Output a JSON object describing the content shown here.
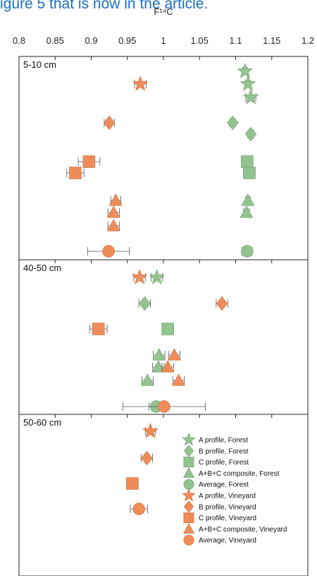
{
  "caption": {
    "text": "igure 5 that is now in the article.",
    "color": "#1a6fc4"
  },
  "chart_data": {
    "type": "scatter",
    "xlabel": "F¹⁴C",
    "xlim": [
      0.8,
      1.2
    ],
    "x_ticks": [
      "0.8",
      "0.85",
      "0.9",
      "0.95",
      "1",
      "1.05",
      "1.1",
      "1.15",
      "1.2"
    ],
    "x_tick_values": [
      0.8,
      0.85,
      0.9,
      0.95,
      1.0,
      1.05,
      1.1,
      1.15,
      1.2
    ],
    "colors": {
      "Forest": "#93c48f",
      "Vineyard": "#ef8c5a",
      "Forest_edge": "#6a9a66",
      "Vineyard_edge": "#c86a3c"
    },
    "panels": [
      {
        "label": "5-10 cm",
        "points": [
          {
            "series": "A profile, Forest",
            "shape": "star",
            "group": "Forest",
            "x": 1.113,
            "xerr": 0.003
          },
          {
            "series": "A profile, Vineyard",
            "shape": "star",
            "group": "Vineyard",
            "x": 0.968,
            "xerr": 0.008
          },
          {
            "series": "A profile, Forest",
            "shape": "star",
            "group": "Forest",
            "x": 1.117,
            "xerr": 0.003
          },
          {
            "series": "A profile, Forest",
            "shape": "star",
            "group": "Forest",
            "x": 1.121,
            "xerr": 0.007
          },
          {
            "series": "B profile, Vineyard",
            "shape": "diamond",
            "group": "Vineyard",
            "x": 0.925,
            "xerr": 0.007
          },
          {
            "series": "B profile, Forest",
            "shape": "diamond",
            "group": "Forest",
            "x": 1.096,
            "xerr": 0.004
          },
          {
            "series": "B profile, Forest",
            "shape": "diamond",
            "group": "Forest",
            "x": 1.121,
            "xerr": 0.004
          },
          {
            "series": "C profile, Vineyard",
            "shape": "square",
            "group": "Vineyard",
            "x": 0.897,
            "xerr": 0.015
          },
          {
            "series": "C profile, Forest",
            "shape": "square",
            "group": "Forest",
            "x": 1.116,
            "xerr": 0.003
          },
          {
            "series": "C profile, Vineyard",
            "shape": "square",
            "group": "Vineyard",
            "x": 0.878,
            "xerr": 0.012
          },
          {
            "series": "C profile, Forest",
            "shape": "square",
            "group": "Forest",
            "x": 1.119,
            "xerr": 0.008
          },
          {
            "series": "A+B+C composite, Vineyard",
            "shape": "triangle",
            "group": "Vineyard",
            "x": 0.934,
            "xerr": 0.007
          },
          {
            "series": "A+B+C composite, Forest",
            "shape": "triangle",
            "group": "Forest",
            "x": 1.117,
            "xerr": 0.003
          },
          {
            "series": "A+B+C composite, Vineyard",
            "shape": "triangle",
            "group": "Vineyard",
            "x": 0.931,
            "xerr": 0.008
          },
          {
            "series": "A+B+C composite, Forest",
            "shape": "triangle",
            "group": "Forest",
            "x": 1.115,
            "xerr": 0.004
          },
          {
            "series": "A+B+C composite, Vineyard",
            "shape": "triangle",
            "group": "Vineyard",
            "x": 0.931,
            "xerr": 0.008
          },
          {
            "series": "Average, Vineyard",
            "shape": "circle",
            "group": "Vineyard",
            "x": 0.924,
            "xerr": 0.029
          },
          {
            "series": "Average, Forest",
            "shape": "circle",
            "group": "Forest",
            "x": 1.116,
            "xerr": 0.007
          }
        ]
      },
      {
        "label": "40-50 cm",
        "points": [
          {
            "series": "A profile, Vineyard",
            "shape": "star",
            "group": "Vineyard",
            "x": 0.967,
            "xerr": 0.008
          },
          {
            "series": "A profile, Forest",
            "shape": "star",
            "group": "Forest",
            "x": 0.991,
            "xerr": 0.008
          },
          {
            "series": "B profile, Forest",
            "shape": "diamond",
            "group": "Forest",
            "x": 0.974,
            "xerr": 0.008
          },
          {
            "series": "B profile, Vineyard",
            "shape": "diamond",
            "group": "Vineyard",
            "x": 1.081,
            "xerr": 0.008
          },
          {
            "series": "C profile, Vineyard",
            "shape": "square",
            "group": "Vineyard",
            "x": 0.91,
            "xerr": 0.012
          },
          {
            "series": "C profile, Forest",
            "shape": "square",
            "group": "Forest",
            "x": 1.006,
            "xerr": 0.008
          },
          {
            "series": "A+B+C composite, Forest",
            "shape": "triangle",
            "group": "Forest",
            "x": 0.994,
            "xerr": 0.008
          },
          {
            "series": "A+B+C composite, Vineyard",
            "shape": "triangle",
            "group": "Vineyard",
            "x": 1.015,
            "xerr": 0.008
          },
          {
            "series": "A+B+C composite, Forest",
            "shape": "triangle",
            "group": "Forest",
            "x": 0.993,
            "xerr": 0.008
          },
          {
            "series": "A+B+C composite, Vineyard",
            "shape": "triangle",
            "group": "Vineyard",
            "x": 1.006,
            "xerr": 0.008
          },
          {
            "series": "A+B+C composite, Forest",
            "shape": "triangle",
            "group": "Forest",
            "x": 0.978,
            "xerr": 0.008
          },
          {
            "series": "A+B+C composite, Vineyard",
            "shape": "triangle",
            "group": "Vineyard",
            "x": 1.021,
            "xerr": 0.008
          },
          {
            "series": "Average, Forest",
            "shape": "circle",
            "group": "Forest",
            "x": 0.99,
            "xerr": 0.01
          },
          {
            "series": "Average, Vineyard",
            "shape": "circle",
            "group": "Vineyard",
            "x": 1.001,
            "xerr": 0.057
          }
        ]
      },
      {
        "label": "50-60 cm",
        "points": [
          {
            "series": "A profile, Vineyard",
            "shape": "star",
            "group": "Vineyard",
            "x": 0.982,
            "xerr": 0.007
          },
          {
            "series": "B profile, Vineyard",
            "shape": "diamond",
            "group": "Vineyard",
            "x": 0.977,
            "xerr": 0.008
          },
          {
            "series": "C profile, Vineyard",
            "shape": "square",
            "group": "Vineyard",
            "x": 0.957,
            "xerr": 0.008
          },
          {
            "series": "Average, Vineyard",
            "shape": "circle",
            "group": "Vineyard",
            "x": 0.966,
            "xerr": 0.012
          }
        ]
      }
    ],
    "legend": [
      {
        "label": "A profile, Forest",
        "shape": "star",
        "group": "Forest"
      },
      {
        "label": "B profile, Forest",
        "shape": "diamond",
        "group": "Forest"
      },
      {
        "label": "C profile, Forest",
        "shape": "square",
        "group": "Forest"
      },
      {
        "label": "A+B+C composite, Forest",
        "shape": "triangle",
        "group": "Forest"
      },
      {
        "label": "Average, Forest",
        "shape": "circle",
        "group": "Forest"
      },
      {
        "label": "A profile, Vineyard",
        "shape": "star",
        "group": "Vineyard"
      },
      {
        "label": "B profile, Vineyard",
        "shape": "diamond",
        "group": "Vineyard"
      },
      {
        "label": "C profile, Vineyard",
        "shape": "square",
        "group": "Vineyard"
      },
      {
        "label": "A+B+C composite, Vineyard",
        "shape": "triangle",
        "group": "Vineyard"
      },
      {
        "label": "Average, Vineyard",
        "shape": "circle",
        "group": "Vineyard"
      }
    ],
    "legend_placement": "bottom-right of lowest panel",
    "grid": false
  }
}
